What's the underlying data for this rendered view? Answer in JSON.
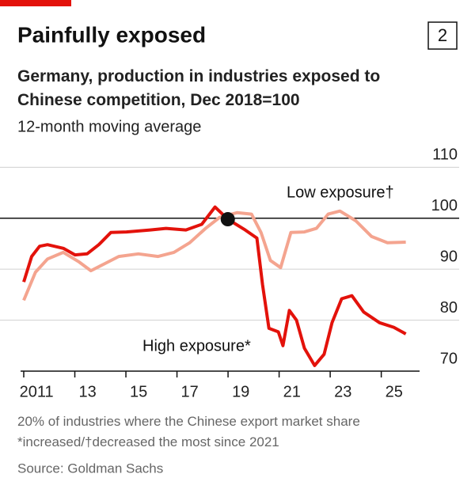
{
  "chart_data": {
    "type": "line",
    "badge": "2",
    "title": "Painfully exposed",
    "subtitle": "Germany, production in industries exposed to Chinese competition, Dec 2018=100",
    "subtitle2": "12-month moving average",
    "xlim": [
      2011,
      2026.5
    ],
    "ylim": [
      70,
      113
    ],
    "xticks": [
      {
        "value": 2011,
        "label": "2011"
      },
      {
        "value": 2013,
        "label": "13"
      },
      {
        "value": 2015,
        "label": "15"
      },
      {
        "value": 2017,
        "label": "17"
      },
      {
        "value": 2019,
        "label": "19"
      },
      {
        "value": 2021,
        "label": "21"
      },
      {
        "value": 2023,
        "label": "23"
      },
      {
        "value": 2025,
        "label": "25"
      }
    ],
    "yticks": [
      70,
      80,
      90,
      100,
      110
    ],
    "baseline": 100,
    "grid": true,
    "series": [
      {
        "name": "Low exposure†",
        "color": "#f4a48f",
        "x": [
          2011.0,
          2011.46,
          2011.93,
          2012.55,
          2013.17,
          2013.63,
          2014.1,
          2014.72,
          2015.49,
          2016.26,
          2016.88,
          2017.5,
          2018.12,
          2018.68,
          2019.36,
          2019.92,
          2020.29,
          2020.66,
          2021.06,
          2021.46,
          2021.99,
          2022.46,
          2022.92,
          2023.38,
          2024.0,
          2024.62,
          2025.24,
          2025.96
        ],
        "values": [
          83.9,
          89.4,
          92.0,
          93.3,
          91.4,
          89.7,
          90.9,
          92.5,
          93.0,
          92.5,
          93.3,
          95.2,
          98.0,
          100.2,
          101.1,
          100.8,
          97.2,
          91.7,
          90.3,
          97.2,
          97.3,
          98.0,
          100.8,
          101.4,
          99.5,
          96.4,
          95.2,
          95.3
        ]
      },
      {
        "name": "High exposure*",
        "color": "#e3120b",
        "x": [
          2011.0,
          2011.31,
          2011.62,
          2011.93,
          2012.55,
          2013.01,
          2013.48,
          2013.94,
          2014.41,
          2015.02,
          2015.95,
          2016.57,
          2017.35,
          2017.97,
          2018.49,
          2018.99,
          2019.67,
          2020.13,
          2020.35,
          2020.6,
          2020.97,
          2021.15,
          2021.4,
          2021.68,
          2021.99,
          2022.39,
          2022.76,
          2023.07,
          2023.45,
          2023.85,
          2024.31,
          2024.93,
          2025.49,
          2025.96
        ],
        "values": [
          87.5,
          92.5,
          94.5,
          94.8,
          94.1,
          92.8,
          93.0,
          94.8,
          97.2,
          97.3,
          97.7,
          98.0,
          97.7,
          98.8,
          102.2,
          99.8,
          97.7,
          96.1,
          87.0,
          78.4,
          77.7,
          75.0,
          81.9,
          80.0,
          74.5,
          71.1,
          73.3,
          79.5,
          84.2,
          84.8,
          81.6,
          79.5,
          78.6,
          77.3
        ]
      }
    ],
    "highlight": {
      "series": 1,
      "index": 15
    },
    "note": "20% of industries where the Chinese export market share *increased/†decreased the most since 2021",
    "source": "Source: Goldman Sachs"
  }
}
